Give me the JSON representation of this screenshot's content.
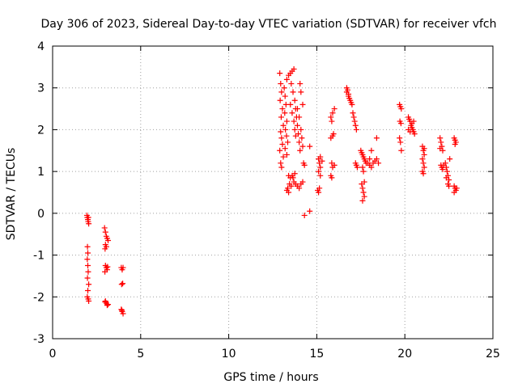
{
  "chart_data": {
    "type": "scatter",
    "title": "Day 306 of 2023, Sidereal Day-to-day VTEC variation (SDTVAR) for receiver vfch",
    "xlabel": "GPS time / hours",
    "ylabel": "SDTVAR / TECUs",
    "xlim": [
      0,
      25
    ],
    "ylim": [
      -3,
      4
    ],
    "xticks": [
      0,
      5,
      10,
      15,
      20,
      25
    ],
    "yticks": [
      -3,
      -2,
      -1,
      0,
      1,
      2,
      3,
      4
    ],
    "grid": true,
    "marker": "+",
    "color": "#ff0000",
    "series": [
      {
        "name": "SDTVAR",
        "points": [
          [
            1.95,
            -0.05
          ],
          [
            1.97,
            -0.1
          ],
          [
            2.0,
            -0.15
          ],
          [
            2.02,
            -0.2
          ],
          [
            2.05,
            -0.25
          ],
          [
            2.03,
            -0.1
          ],
          [
            1.98,
            -0.8
          ],
          [
            2.0,
            -0.95
          ],
          [
            1.97,
            -1.1
          ],
          [
            2.0,
            -1.25
          ],
          [
            2.02,
            -1.4
          ],
          [
            1.98,
            -1.55
          ],
          [
            2.05,
            -1.7
          ],
          [
            2.0,
            -1.85
          ],
          [
            1.97,
            -2.0
          ],
          [
            2.02,
            -2.05
          ],
          [
            2.05,
            -2.1
          ],
          [
            2.95,
            -0.35
          ],
          [
            3.0,
            -0.45
          ],
          [
            3.05,
            -0.55
          ],
          [
            3.1,
            -0.6
          ],
          [
            3.15,
            -0.65
          ],
          [
            3.0,
            -0.75
          ],
          [
            3.05,
            -0.8
          ],
          [
            2.98,
            -0.85
          ],
          [
            3.0,
            -1.25
          ],
          [
            3.05,
            -1.3
          ],
          [
            3.1,
            -1.35
          ],
          [
            2.97,
            -1.4
          ],
          [
            3.12,
            -1.28
          ],
          [
            3.0,
            -2.1
          ],
          [
            3.05,
            -2.15
          ],
          [
            3.1,
            -2.2
          ],
          [
            3.15,
            -2.18
          ],
          [
            2.98,
            -2.12
          ],
          [
            3.9,
            -1.3
          ],
          [
            3.95,
            -1.35
          ],
          [
            4.0,
            -1.3
          ],
          [
            3.92,
            -1.7
          ],
          [
            3.98,
            -1.68
          ],
          [
            3.9,
            -2.3
          ],
          [
            3.95,
            -2.35
          ],
          [
            4.0,
            -2.4
          ],
          [
            3.93,
            -2.32
          ],
          [
            12.9,
            3.35
          ],
          [
            12.95,
            3.1
          ],
          [
            13.0,
            2.9
          ],
          [
            12.92,
            2.7
          ],
          [
            13.05,
            2.5
          ],
          [
            12.98,
            2.3
          ],
          [
            13.1,
            2.1
          ],
          [
            12.95,
            1.95
          ],
          [
            13.0,
            1.8
          ],
          [
            13.05,
            1.65
          ],
          [
            12.9,
            1.5
          ],
          [
            13.1,
            1.35
          ],
          [
            12.95,
            1.2
          ],
          [
            13.0,
            1.1
          ],
          [
            13.15,
            3.0
          ],
          [
            13.2,
            2.8
          ],
          [
            13.25,
            2.6
          ],
          [
            13.18,
            2.4
          ],
          [
            13.3,
            2.2
          ],
          [
            13.22,
            2.0
          ],
          [
            13.28,
            1.85
          ],
          [
            13.35,
            1.7
          ],
          [
            13.2,
            1.55
          ],
          [
            13.3,
            1.4
          ],
          [
            13.3,
            3.2
          ],
          [
            13.4,
            3.3
          ],
          [
            13.5,
            3.35
          ],
          [
            13.6,
            3.4
          ],
          [
            13.7,
            3.45
          ],
          [
            13.55,
            3.1
          ],
          [
            13.65,
            2.9
          ],
          [
            13.75,
            2.7
          ],
          [
            13.8,
            2.5
          ],
          [
            13.85,
            2.3
          ],
          [
            13.9,
            2.1
          ],
          [
            13.95,
            1.9
          ],
          [
            14.0,
            1.7
          ],
          [
            14.05,
            1.5
          ],
          [
            13.5,
            2.6
          ],
          [
            13.6,
            2.4
          ],
          [
            13.7,
            2.2
          ],
          [
            13.75,
            2.0
          ],
          [
            13.8,
            1.85
          ],
          [
            13.9,
            2.5
          ],
          [
            14.0,
            2.3
          ],
          [
            14.1,
            2.0
          ],
          [
            14.15,
            1.8
          ],
          [
            14.2,
            1.6
          ],
          [
            14.1,
            2.9
          ],
          [
            14.05,
            3.1
          ],
          [
            14.2,
            2.6
          ],
          [
            13.4,
            0.9
          ],
          [
            13.5,
            0.85
          ],
          [
            13.6,
            0.9
          ],
          [
            13.45,
            0.7
          ],
          [
            13.55,
            0.65
          ],
          [
            13.7,
            0.75
          ],
          [
            13.8,
            0.7
          ],
          [
            13.9,
            0.65
          ],
          [
            14.0,
            0.6
          ],
          [
            14.1,
            0.7
          ],
          [
            14.2,
            0.75
          ],
          [
            13.35,
            0.6
          ],
          [
            13.4,
            0.5
          ],
          [
            13.3,
            0.55
          ],
          [
            13.65,
            0.85
          ],
          [
            13.75,
            0.95
          ],
          [
            14.25,
            1.2
          ],
          [
            14.3,
            1.15
          ],
          [
            14.6,
            1.6
          ],
          [
            14.3,
            -0.05
          ],
          [
            14.6,
            0.05
          ],
          [
            15.1,
            1.3
          ],
          [
            15.15,
            1.2
          ],
          [
            15.2,
            1.1
          ],
          [
            15.1,
            1.0
          ],
          [
            15.2,
            0.9
          ],
          [
            15.05,
            0.55
          ],
          [
            15.1,
            0.5
          ],
          [
            15.15,
            0.6
          ],
          [
            15.3,
            1.25
          ],
          [
            15.2,
            1.35
          ],
          [
            15.8,
            2.3
          ],
          [
            15.9,
            2.4
          ],
          [
            16.0,
            2.5
          ],
          [
            15.85,
            2.2
          ],
          [
            15.8,
            1.8
          ],
          [
            15.9,
            1.85
          ],
          [
            15.95,
            1.9
          ],
          [
            15.85,
            1.2
          ],
          [
            15.9,
            1.1
          ],
          [
            16.0,
            1.15
          ],
          [
            15.8,
            0.9
          ],
          [
            15.85,
            0.85
          ],
          [
            16.7,
            3.0
          ],
          [
            16.75,
            2.95
          ],
          [
            16.8,
            2.85
          ],
          [
            16.85,
            2.75
          ],
          [
            16.9,
            2.7
          ],
          [
            16.95,
            2.65
          ],
          [
            16.8,
            2.8
          ],
          [
            16.7,
            2.9
          ],
          [
            17.0,
            2.6
          ],
          [
            17.05,
            2.4
          ],
          [
            17.1,
            2.3
          ],
          [
            17.15,
            2.2
          ],
          [
            17.2,
            2.1
          ],
          [
            17.25,
            2.0
          ],
          [
            17.2,
            1.2
          ],
          [
            17.25,
            1.15
          ],
          [
            17.3,
            1.1
          ],
          [
            17.5,
            1.5
          ],
          [
            17.55,
            1.45
          ],
          [
            17.6,
            1.4
          ],
          [
            17.65,
            1.35
          ],
          [
            17.7,
            1.3
          ],
          [
            17.75,
            1.25
          ],
          [
            17.8,
            1.2
          ],
          [
            17.6,
            1.1
          ],
          [
            17.65,
            1.0
          ],
          [
            17.55,
            0.7
          ],
          [
            17.6,
            0.6
          ],
          [
            17.65,
            0.5
          ],
          [
            17.7,
            0.4
          ],
          [
            17.6,
            0.3
          ],
          [
            17.7,
            0.75
          ],
          [
            17.9,
            1.2
          ],
          [
            18.0,
            1.15
          ],
          [
            18.1,
            1.1
          ],
          [
            18.2,
            1.2
          ],
          [
            18.3,
            1.25
          ],
          [
            18.4,
            1.3
          ],
          [
            18.0,
            1.3
          ],
          [
            18.4,
            1.8
          ],
          [
            18.5,
            1.2
          ],
          [
            18.1,
            1.5
          ],
          [
            19.7,
            2.6
          ],
          [
            19.75,
            2.55
          ],
          [
            19.8,
            2.5
          ],
          [
            19.72,
            2.2
          ],
          [
            19.78,
            2.15
          ],
          [
            19.7,
            1.8
          ],
          [
            19.75,
            1.7
          ],
          [
            19.8,
            1.5
          ],
          [
            20.2,
            2.3
          ],
          [
            20.25,
            2.25
          ],
          [
            20.3,
            2.2
          ],
          [
            20.35,
            2.1
          ],
          [
            20.4,
            2.05
          ],
          [
            20.45,
            2.0
          ],
          [
            20.5,
            1.95
          ],
          [
            20.55,
            1.9
          ],
          [
            20.3,
            1.95
          ],
          [
            20.4,
            2.15
          ],
          [
            20.2,
            2.0
          ],
          [
            20.5,
            2.2
          ],
          [
            21.0,
            1.6
          ],
          [
            21.05,
            1.5
          ],
          [
            21.1,
            1.4
          ],
          [
            21.0,
            1.3
          ],
          [
            21.05,
            1.2
          ],
          [
            21.1,
            1.1
          ],
          [
            21.0,
            1.0
          ],
          [
            21.05,
            0.95
          ],
          [
            21.1,
            1.55
          ],
          [
            22.0,
            1.8
          ],
          [
            22.05,
            1.7
          ],
          [
            22.1,
            1.6
          ],
          [
            22.15,
            1.5
          ],
          [
            22.0,
            1.55
          ],
          [
            22.05,
            1.15
          ],
          [
            22.1,
            1.1
          ],
          [
            22.15,
            1.05
          ],
          [
            22.2,
            1.15
          ],
          [
            22.3,
            1.2
          ],
          [
            22.35,
            1.1
          ],
          [
            22.4,
            1.0
          ],
          [
            22.45,
            0.9
          ],
          [
            22.5,
            0.8
          ],
          [
            22.45,
            0.7
          ],
          [
            22.5,
            0.65
          ],
          [
            22.55,
            1.3
          ],
          [
            22.35,
            0.85
          ],
          [
            22.8,
            1.8
          ],
          [
            22.85,
            1.75
          ],
          [
            22.9,
            1.7
          ],
          [
            22.85,
            1.65
          ],
          [
            22.8,
            0.65
          ],
          [
            22.85,
            0.6
          ],
          [
            22.9,
            0.55
          ],
          [
            22.95,
            0.6
          ],
          [
            22.8,
            0.5
          ]
        ]
      }
    ]
  }
}
